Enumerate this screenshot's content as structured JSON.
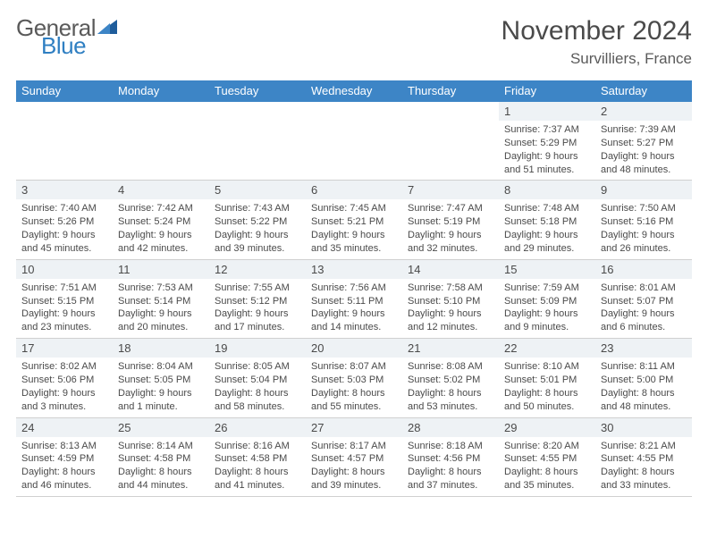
{
  "brand": {
    "part1": "General",
    "part2": "Blue"
  },
  "title": "November 2024",
  "location": "Survilliers, France",
  "colors": {
    "header_bg": "#3d85c6",
    "header_text": "#ffffff",
    "daynum_bg": "#eef2f5",
    "text": "#4a4a4a",
    "brand_blue": "#2f7fc2",
    "brand_gray": "#5a5a5a",
    "border": "#d0d0d0",
    "page_bg": "#ffffff"
  },
  "typography": {
    "title_fontsize_pt": 22,
    "location_fontsize_pt": 13,
    "weekday_fontsize_pt": 10,
    "daynum_fontsize_pt": 10,
    "body_fontsize_pt": 8
  },
  "weekdays": [
    "Sunday",
    "Monday",
    "Tuesday",
    "Wednesday",
    "Thursday",
    "Friday",
    "Saturday"
  ],
  "weeks": [
    [
      {
        "n": "",
        "sunrise": "",
        "sunset": "",
        "daylight": ""
      },
      {
        "n": "",
        "sunrise": "",
        "sunset": "",
        "daylight": ""
      },
      {
        "n": "",
        "sunrise": "",
        "sunset": "",
        "daylight": ""
      },
      {
        "n": "",
        "sunrise": "",
        "sunset": "",
        "daylight": ""
      },
      {
        "n": "",
        "sunrise": "",
        "sunset": "",
        "daylight": ""
      },
      {
        "n": "1",
        "sunrise": "Sunrise: 7:37 AM",
        "sunset": "Sunset: 5:29 PM",
        "daylight": "Daylight: 9 hours and 51 minutes."
      },
      {
        "n": "2",
        "sunrise": "Sunrise: 7:39 AM",
        "sunset": "Sunset: 5:27 PM",
        "daylight": "Daylight: 9 hours and 48 minutes."
      }
    ],
    [
      {
        "n": "3",
        "sunrise": "Sunrise: 7:40 AM",
        "sunset": "Sunset: 5:26 PM",
        "daylight": "Daylight: 9 hours and 45 minutes."
      },
      {
        "n": "4",
        "sunrise": "Sunrise: 7:42 AM",
        "sunset": "Sunset: 5:24 PM",
        "daylight": "Daylight: 9 hours and 42 minutes."
      },
      {
        "n": "5",
        "sunrise": "Sunrise: 7:43 AM",
        "sunset": "Sunset: 5:22 PM",
        "daylight": "Daylight: 9 hours and 39 minutes."
      },
      {
        "n": "6",
        "sunrise": "Sunrise: 7:45 AM",
        "sunset": "Sunset: 5:21 PM",
        "daylight": "Daylight: 9 hours and 35 minutes."
      },
      {
        "n": "7",
        "sunrise": "Sunrise: 7:47 AM",
        "sunset": "Sunset: 5:19 PM",
        "daylight": "Daylight: 9 hours and 32 minutes."
      },
      {
        "n": "8",
        "sunrise": "Sunrise: 7:48 AM",
        "sunset": "Sunset: 5:18 PM",
        "daylight": "Daylight: 9 hours and 29 minutes."
      },
      {
        "n": "9",
        "sunrise": "Sunrise: 7:50 AM",
        "sunset": "Sunset: 5:16 PM",
        "daylight": "Daylight: 9 hours and 26 minutes."
      }
    ],
    [
      {
        "n": "10",
        "sunrise": "Sunrise: 7:51 AM",
        "sunset": "Sunset: 5:15 PM",
        "daylight": "Daylight: 9 hours and 23 minutes."
      },
      {
        "n": "11",
        "sunrise": "Sunrise: 7:53 AM",
        "sunset": "Sunset: 5:14 PM",
        "daylight": "Daylight: 9 hours and 20 minutes."
      },
      {
        "n": "12",
        "sunrise": "Sunrise: 7:55 AM",
        "sunset": "Sunset: 5:12 PM",
        "daylight": "Daylight: 9 hours and 17 minutes."
      },
      {
        "n": "13",
        "sunrise": "Sunrise: 7:56 AM",
        "sunset": "Sunset: 5:11 PM",
        "daylight": "Daylight: 9 hours and 14 minutes."
      },
      {
        "n": "14",
        "sunrise": "Sunrise: 7:58 AM",
        "sunset": "Sunset: 5:10 PM",
        "daylight": "Daylight: 9 hours and 12 minutes."
      },
      {
        "n": "15",
        "sunrise": "Sunrise: 7:59 AM",
        "sunset": "Sunset: 5:09 PM",
        "daylight": "Daylight: 9 hours and 9 minutes."
      },
      {
        "n": "16",
        "sunrise": "Sunrise: 8:01 AM",
        "sunset": "Sunset: 5:07 PM",
        "daylight": "Daylight: 9 hours and 6 minutes."
      }
    ],
    [
      {
        "n": "17",
        "sunrise": "Sunrise: 8:02 AM",
        "sunset": "Sunset: 5:06 PM",
        "daylight": "Daylight: 9 hours and 3 minutes."
      },
      {
        "n": "18",
        "sunrise": "Sunrise: 8:04 AM",
        "sunset": "Sunset: 5:05 PM",
        "daylight": "Daylight: 9 hours and 1 minute."
      },
      {
        "n": "19",
        "sunrise": "Sunrise: 8:05 AM",
        "sunset": "Sunset: 5:04 PM",
        "daylight": "Daylight: 8 hours and 58 minutes."
      },
      {
        "n": "20",
        "sunrise": "Sunrise: 8:07 AM",
        "sunset": "Sunset: 5:03 PM",
        "daylight": "Daylight: 8 hours and 55 minutes."
      },
      {
        "n": "21",
        "sunrise": "Sunrise: 8:08 AM",
        "sunset": "Sunset: 5:02 PM",
        "daylight": "Daylight: 8 hours and 53 minutes."
      },
      {
        "n": "22",
        "sunrise": "Sunrise: 8:10 AM",
        "sunset": "Sunset: 5:01 PM",
        "daylight": "Daylight: 8 hours and 50 minutes."
      },
      {
        "n": "23",
        "sunrise": "Sunrise: 8:11 AM",
        "sunset": "Sunset: 5:00 PM",
        "daylight": "Daylight: 8 hours and 48 minutes."
      }
    ],
    [
      {
        "n": "24",
        "sunrise": "Sunrise: 8:13 AM",
        "sunset": "Sunset: 4:59 PM",
        "daylight": "Daylight: 8 hours and 46 minutes."
      },
      {
        "n": "25",
        "sunrise": "Sunrise: 8:14 AM",
        "sunset": "Sunset: 4:58 PM",
        "daylight": "Daylight: 8 hours and 44 minutes."
      },
      {
        "n": "26",
        "sunrise": "Sunrise: 8:16 AM",
        "sunset": "Sunset: 4:58 PM",
        "daylight": "Daylight: 8 hours and 41 minutes."
      },
      {
        "n": "27",
        "sunrise": "Sunrise: 8:17 AM",
        "sunset": "Sunset: 4:57 PM",
        "daylight": "Daylight: 8 hours and 39 minutes."
      },
      {
        "n": "28",
        "sunrise": "Sunrise: 8:18 AM",
        "sunset": "Sunset: 4:56 PM",
        "daylight": "Daylight: 8 hours and 37 minutes."
      },
      {
        "n": "29",
        "sunrise": "Sunrise: 8:20 AM",
        "sunset": "Sunset: 4:55 PM",
        "daylight": "Daylight: 8 hours and 35 minutes."
      },
      {
        "n": "30",
        "sunrise": "Sunrise: 8:21 AM",
        "sunset": "Sunset: 4:55 PM",
        "daylight": "Daylight: 8 hours and 33 minutes."
      }
    ]
  ]
}
